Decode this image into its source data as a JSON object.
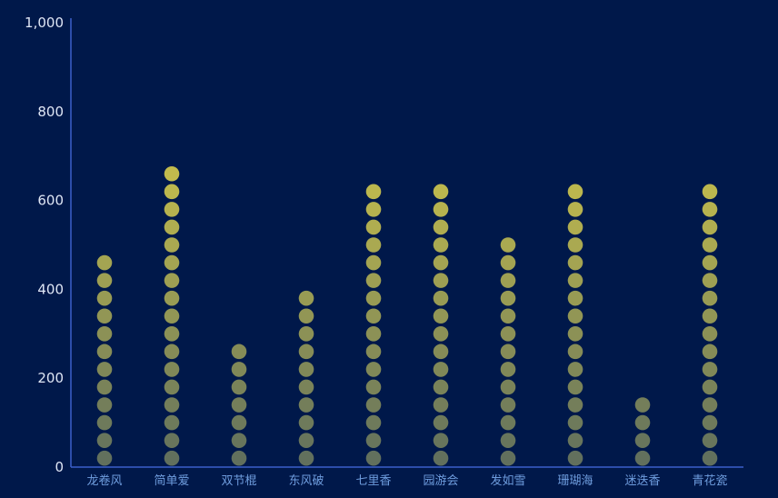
{
  "chart_data": {
    "type": "bar",
    "categories": [
      "龙卷风",
      "简单爱",
      "双节棍",
      "东风破",
      "七里香",
      "园游会",
      "发如雪",
      "珊瑚海",
      "迷迭香",
      "青花瓷"
    ],
    "values": [
      470,
      670,
      260,
      390,
      630,
      630,
      510,
      630,
      140,
      630
    ],
    "yticks": [
      "0",
      "200",
      "400",
      "600",
      "800",
      "1,000"
    ],
    "ylim": [
      0,
      1000
    ],
    "grid": false,
    "colors": {
      "background": "#00184a",
      "axis": "#3b5fc9",
      "marker_low": "#5f6e5e",
      "marker_high": "#c8c04c",
      "y_tick_text": "#dfe6f5",
      "x_tick_text": "#6f9dde"
    }
  }
}
